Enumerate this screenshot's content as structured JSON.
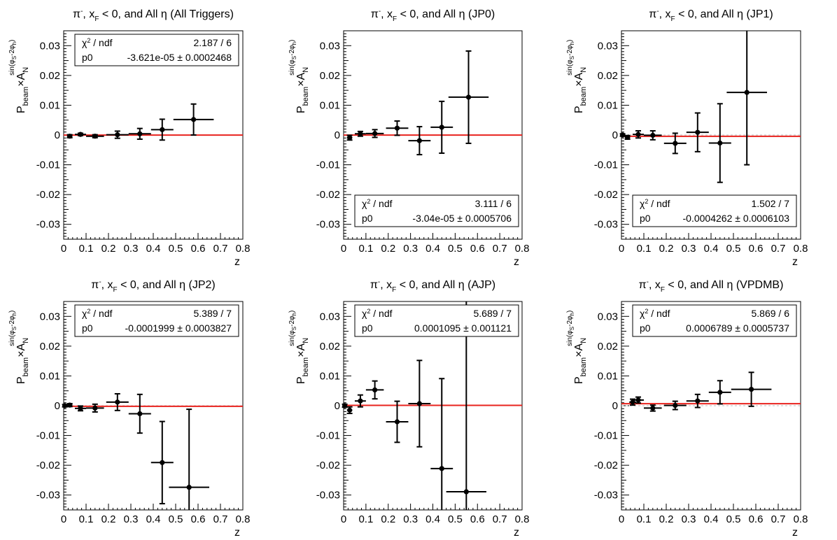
{
  "chart_data": [
    {
      "type": "scatter",
      "title": "π-, xF < 0, and All η (All Triggers)",
      "xlabel": "z",
      "ylabel": "P_beam × A_N^{sin(φS-2φh)}",
      "xlim": [
        0,
        0.8
      ],
      "ylim": [
        -0.035,
        0.035
      ],
      "xticks": [
        "0",
        "0.1",
        "0.2",
        "0.3",
        "0.4",
        "0.5",
        "0.6",
        "0.7",
        "0.8"
      ],
      "yticks": [
        "0.03",
        "0.02",
        "0.01",
        "0",
        "-0.01",
        "-0.02",
        "-0.03"
      ],
      "points": [
        {
          "x": 0.027,
          "xerr": 0.012,
          "y": -0.0004,
          "yerr": 0.0005
        },
        {
          "x": 0.075,
          "xerr": 0.025,
          "y": 0.0002,
          "yerr": 0.0004
        },
        {
          "x": 0.14,
          "xerr": 0.04,
          "y": -0.0004,
          "yerr": 0.0005
        },
        {
          "x": 0.24,
          "xerr": 0.05,
          "y": 0.0001,
          "yerr": 0.0012
        },
        {
          "x": 0.34,
          "xerr": 0.05,
          "y": 0.0004,
          "yerr": 0.0018
        },
        {
          "x": 0.44,
          "xerr": 0.05,
          "y": 0.0018,
          "yerr": 0.0035
        },
        {
          "x": 0.58,
          "xerr": 0.09,
          "y": 0.0052,
          "yerr": 0.0052
        }
      ],
      "fit": {
        "p0": -3.62e-05,
        "color": "#e8231e"
      },
      "stats": {
        "row1_label": "χ2 / ndf",
        "row1_value": "2.187 / 6",
        "row2_label": "p0",
        "row2_value": "-3.621e-05 ± 0.0002468",
        "position": "top"
      }
    },
    {
      "type": "scatter",
      "title": "π-, xF < 0, and All η (JP0)",
      "xlabel": "z",
      "ylabel": "P_beam × A_N^{sin(φS-2φh)}",
      "xlim": [
        0,
        0.8
      ],
      "ylim": [
        -0.035,
        0.035
      ],
      "xticks": [
        "0",
        "0.1",
        "0.2",
        "0.3",
        "0.4",
        "0.5",
        "0.6",
        "0.7",
        "0.8"
      ],
      "yticks": [
        "0.03",
        "0.02",
        "0.01",
        "0",
        "-0.01",
        "-0.02",
        "-0.03"
      ],
      "points": [
        {
          "x": 0.027,
          "xerr": 0.012,
          "y": -0.0009,
          "yerr": 0.0008
        },
        {
          "x": 0.075,
          "xerr": 0.025,
          "y": 0.0004,
          "yerr": 0.0008
        },
        {
          "x": 0.14,
          "xerr": 0.04,
          "y": 0.0005,
          "yerr": 0.0013
        },
        {
          "x": 0.24,
          "xerr": 0.05,
          "y": 0.0023,
          "yerr": 0.0024
        },
        {
          "x": 0.34,
          "xerr": 0.05,
          "y": -0.0019,
          "yerr": 0.0047
        },
        {
          "x": 0.44,
          "xerr": 0.05,
          "y": 0.0026,
          "yerr": 0.0087
        },
        {
          "x": 0.56,
          "xerr": 0.09,
          "y": 0.0127,
          "yerr": 0.0155
        }
      ],
      "fit": {
        "p0": -3.04e-05,
        "color": "#e8231e"
      },
      "stats": {
        "row1_label": "χ2 / ndf",
        "row1_value": "3.111 / 6",
        "row2_label": "p0",
        "row2_value": "-3.04e-05 ± 0.0005706",
        "position": "bottom"
      }
    },
    {
      "type": "scatter",
      "title": "π-, xF < 0, and All η (JP1)",
      "xlabel": "z",
      "ylabel": "P_beam × A_N^{sin(φS-2φh)}",
      "xlim": [
        0,
        0.8
      ],
      "ylim": [
        -0.035,
        0.035
      ],
      "xticks": [
        "0",
        "0.1",
        "0.2",
        "0.3",
        "0.4",
        "0.5",
        "0.6",
        "0.7",
        "0.8"
      ],
      "yticks": [
        "0.03",
        "0.02",
        "0.01",
        "0",
        "-0.01",
        "-0.02",
        "-0.03"
      ],
      "points": [
        {
          "x": 0.005,
          "xerr": 0.005,
          "y": 0.0,
          "yerr": 0.0004
        },
        {
          "x": 0.027,
          "xerr": 0.012,
          "y": -0.0008,
          "yerr": 0.0006
        },
        {
          "x": 0.075,
          "xerr": 0.025,
          "y": 0.0002,
          "yerr": 0.0012
        },
        {
          "x": 0.14,
          "xerr": 0.04,
          "y": -0.0001,
          "yerr": 0.0015
        },
        {
          "x": 0.24,
          "xerr": 0.05,
          "y": -0.0028,
          "yerr": 0.0034
        },
        {
          "x": 0.34,
          "xerr": 0.05,
          "y": 0.0009,
          "yerr": 0.0065
        },
        {
          "x": 0.44,
          "xerr": 0.05,
          "y": -0.0027,
          "yerr": 0.0132
        },
        {
          "x": 0.56,
          "xerr": 0.09,
          "y": 0.0143,
          "yerr": 0.0243
        }
      ],
      "fit": {
        "p0": -0.0004262,
        "color": "#e8231e"
      },
      "stats": {
        "row1_label": "χ2 / ndf",
        "row1_value": "1.502 / 7",
        "row2_label": "p0",
        "row2_value": "-0.0004262 ± 0.0006103",
        "position": "bottom"
      }
    },
    {
      "type": "scatter",
      "title": "π-, xF < 0, and All η (JP2)",
      "xlabel": "z",
      "ylabel": "P_beam × A_N^{sin(φS-2φh)}",
      "xlim": [
        0,
        0.8
      ],
      "ylim": [
        -0.035,
        0.035
      ],
      "xticks": [
        "0",
        "0.1",
        "0.2",
        "0.3",
        "0.4",
        "0.5",
        "0.6",
        "0.7",
        "0.8"
      ],
      "yticks": [
        "0.03",
        "0.02",
        "0.01",
        "0",
        "-0.01",
        "-0.02",
        "-0.03"
      ],
      "points": [
        {
          "x": 0.005,
          "xerr": 0.005,
          "y": 0.0,
          "yerr": 0.0004
        },
        {
          "x": 0.027,
          "xerr": 0.012,
          "y": 0.0002,
          "yerr": 0.0005
        },
        {
          "x": 0.075,
          "xerr": 0.025,
          "y": -0.0009,
          "yerr": 0.0008
        },
        {
          "x": 0.14,
          "xerr": 0.04,
          "y": -0.0008,
          "yerr": 0.0013
        },
        {
          "x": 0.24,
          "xerr": 0.05,
          "y": 0.0012,
          "yerr": 0.0028
        },
        {
          "x": 0.34,
          "xerr": 0.05,
          "y": -0.0027,
          "yerr": 0.0065
        },
        {
          "x": 0.44,
          "xerr": 0.05,
          "y": -0.0191,
          "yerr": 0.0138
        },
        {
          "x": 0.56,
          "xerr": 0.09,
          "y": -0.0274,
          "yerr": 0.0262
        }
      ],
      "fit": {
        "p0": -0.0001999,
        "color": "#e8231e"
      },
      "stats": {
        "row1_label": "χ2 / ndf",
        "row1_value": "5.389 / 7",
        "row2_label": "p0",
        "row2_value": "-0.0001999 ± 0.0003827",
        "position": "top"
      }
    },
    {
      "type": "scatter",
      "title": "π-, xF < 0, and All η (AJP)",
      "xlabel": "z",
      "ylabel": "P_beam × A_N^{sin(φS-2φh)}",
      "xlim": [
        0,
        0.8
      ],
      "ylim": [
        -0.035,
        0.035
      ],
      "xticks": [
        "0",
        "0.1",
        "0.2",
        "0.3",
        "0.4",
        "0.5",
        "0.6",
        "0.7",
        "0.8"
      ],
      "yticks": [
        "0.03",
        "0.02",
        "0.01",
        "0",
        "-0.01",
        "-0.02",
        "-0.03"
      ],
      "points": [
        {
          "x": 0.005,
          "xerr": 0.005,
          "y": 0.0,
          "yerr": 0.0005
        },
        {
          "x": 0.027,
          "xerr": 0.012,
          "y": -0.0015,
          "yerr": 0.0011
        },
        {
          "x": 0.075,
          "xerr": 0.025,
          "y": 0.0016,
          "yerr": 0.002
        },
        {
          "x": 0.14,
          "xerr": 0.04,
          "y": 0.0053,
          "yerr": 0.003
        },
        {
          "x": 0.24,
          "xerr": 0.05,
          "y": -0.0054,
          "yerr": 0.0069
        },
        {
          "x": 0.34,
          "xerr": 0.05,
          "y": 0.0007,
          "yerr": 0.0145
        },
        {
          "x": 0.44,
          "xerr": 0.05,
          "y": -0.0211,
          "yerr": 0.0302
        },
        {
          "x": 0.55,
          "xerr": 0.09,
          "y": -0.0289,
          "yerr": 0.064
        }
      ],
      "fit": {
        "p0": 0.0001095,
        "color": "#e8231e"
      },
      "stats": {
        "row1_label": "χ2 / ndf",
        "row1_value": "5.689 / 7",
        "row2_label": "p0",
        "row2_value": "0.0001095 ± 0.001121",
        "position": "top"
      }
    },
    {
      "type": "scatter",
      "title": "π-, xF < 0, and All η (VPDMB)",
      "xlabel": "z",
      "ylabel": "P_beam × A_N^{sin(φS-2φh)}",
      "xlim": [
        0,
        0.8
      ],
      "ylim": [
        -0.035,
        0.035
      ],
      "xticks": [
        "0",
        "0.1",
        "0.2",
        "0.3",
        "0.4",
        "0.5",
        "0.6",
        "0.7",
        "0.8"
      ],
      "yticks": [
        "0.03",
        "0.02",
        "0.01",
        "0",
        "-0.01",
        "-0.02",
        "-0.03"
      ],
      "points": [
        {
          "x": 0.05,
          "xerr": 0.015,
          "y": 0.0012,
          "yerr": 0.001
        },
        {
          "x": 0.075,
          "xerr": 0.025,
          "y": 0.0019,
          "yerr": 0.001
        },
        {
          "x": 0.14,
          "xerr": 0.04,
          "y": -0.0008,
          "yerr": 0.001
        },
        {
          "x": 0.24,
          "xerr": 0.05,
          "y": 0.0001,
          "yerr": 0.0014
        },
        {
          "x": 0.34,
          "xerr": 0.05,
          "y": 0.0016,
          "yerr": 0.0022
        },
        {
          "x": 0.44,
          "xerr": 0.05,
          "y": 0.0045,
          "yerr": 0.0039
        },
        {
          "x": 0.58,
          "xerr": 0.09,
          "y": 0.0055,
          "yerr": 0.0057
        }
      ],
      "fit": {
        "p0": 0.0006789,
        "color": "#e8231e"
      },
      "stats": {
        "row1_label": "χ2 / ndf",
        "row1_value": "5.869 / 6",
        "row2_label": "p0",
        "row2_value": "0.0006789 ± 0.0005737",
        "position": "top"
      }
    }
  ]
}
